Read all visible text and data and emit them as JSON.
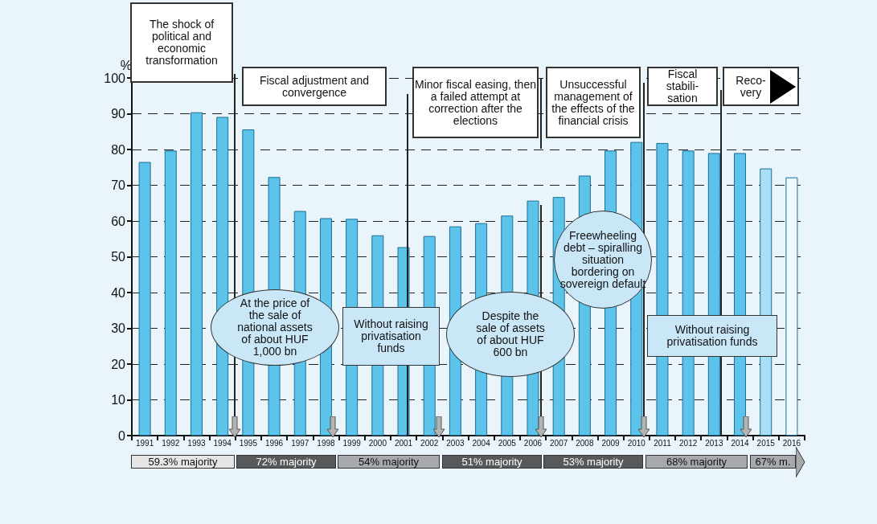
{
  "chart_data": {
    "type": "bar",
    "ylabel": "%",
    "categories": [
      "1991",
      "1992",
      "1993",
      "1994",
      "1995",
      "1996",
      "1997",
      "1998",
      "1999",
      "2000",
      "2001",
      "2002",
      "2003",
      "2004",
      "2005",
      "2006",
      "2007",
      "2008",
      "2009",
      "2010",
      "2011",
      "2012",
      "2013",
      "2014",
      "2015",
      "2016"
    ],
    "values": [
      76.5,
      79.7,
      90.4,
      89.1,
      85.6,
      72.3,
      62.8,
      60.8,
      60.6,
      56.0,
      52.7,
      55.8,
      58.5,
      59.4,
      61.5,
      65.7,
      66.7,
      72.7,
      79.7,
      82.1,
      81.8,
      79.7,
      79.0,
      79.0,
      74.7,
      72.2
    ],
    "colors": [
      "#5cc3ea",
      "#5cc3ea",
      "#5cc3ea",
      "#5cc3ea",
      "#5cc3ea",
      "#5cc3ea",
      "#5cc3ea",
      "#5cc3ea",
      "#5cc3ea",
      "#5cc3ea",
      "#5cc3ea",
      "#5cc3ea",
      "#5cc3ea",
      "#5cc3ea",
      "#5cc3ea",
      "#5cc3ea",
      "#5cc3ea",
      "#5cc3ea",
      "#5cc3ea",
      "#5cc3ea",
      "#5cc3ea",
      "#5cc3ea",
      "#5cc3ea",
      "#5cc3ea",
      "#a9dff5",
      "#eef8fd"
    ],
    "ylim": [
      0,
      100
    ],
    "yticks": [
      0,
      10,
      20,
      30,
      40,
      50,
      60,
      70,
      80,
      90,
      100
    ],
    "grid": "y",
    "annotations": [
      "The shock of political and economic transformation",
      "Fiscal adjustment and convergence",
      "Minor fiscal easing, then a failed attempt at correction after the elections",
      "Unsuccessful management of the effects of the financial crisis",
      "Fiscal stabili- sation",
      "Reco- very",
      "At the price of the sale of national assets of about HUF 1,000 bn",
      "Without raising privatisation funds",
      "Despite the sale of assets of about HUF 600 bn",
      "Freewheeling debt – spiralling situation bordering on sovereign default",
      "Without raising privatisation funds",
      "59.3% majority",
      "72% majority",
      "54% majority",
      "51% majority",
      "53% majority",
      "68% majority",
      "67% m."
    ]
  }
}
